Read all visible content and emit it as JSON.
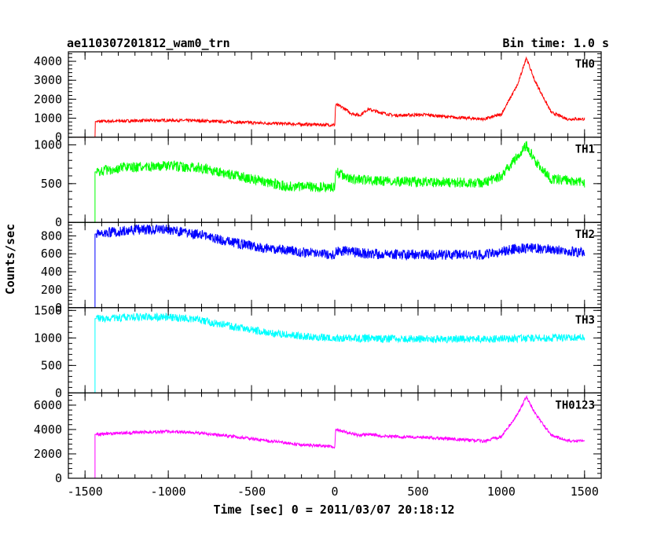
{
  "chart_data": {
    "type": "line",
    "title": "ae110307201812_wam0_trn",
    "bin_time": "Bin time: 1.0 s",
    "xlabel": "Time [sec] 0 = 2011/03/07 20:18:12",
    "ylabel": "Counts/sec",
    "xlim": [
      -1600,
      1600
    ],
    "xticks": [
      "-1500",
      "-1000",
      "-500",
      "0",
      "500",
      "1000",
      "1500"
    ],
    "xtick_values": [
      -1500,
      -1000,
      -500,
      0,
      500,
      1000,
      1500
    ],
    "panels": [
      {
        "name": "TH0",
        "color": "#ff0000",
        "ylim": [
          0,
          4500
        ],
        "yticks": [
          0,
          1000,
          2000,
          3000,
          4000
        ],
        "ytick_labels": [
          "0",
          "1000",
          "2000",
          "3000",
          "4000"
        ],
        "points": [
          [
            -1550,
            0
          ],
          [
            -1440,
            0
          ],
          [
            -1440,
            820
          ],
          [
            -1300,
            850
          ],
          [
            -1000,
            890
          ],
          [
            -800,
            860
          ],
          [
            -500,
            760
          ],
          [
            -200,
            680
          ],
          [
            -10,
            640
          ],
          [
            0,
            640
          ],
          [
            5,
            1720
          ],
          [
            50,
            1550
          ],
          [
            100,
            1250
          ],
          [
            150,
            1150
          ],
          [
            200,
            1480
          ],
          [
            250,
            1350
          ],
          [
            350,
            1150
          ],
          [
            550,
            1180
          ],
          [
            700,
            1050
          ],
          [
            900,
            950
          ],
          [
            1000,
            1200
          ],
          [
            1100,
            2800
          ],
          [
            1150,
            4200
          ],
          [
            1200,
            3000
          ],
          [
            1300,
            1300
          ],
          [
            1400,
            950
          ],
          [
            1500,
            960
          ]
        ]
      },
      {
        "name": "TH1",
        "color": "#00ff00",
        "ylim": [
          0,
          1100
        ],
        "yticks": [
          0,
          500,
          1000
        ],
        "ytick_labels": [
          "0",
          "500",
          "1000"
        ],
        "points": [
          [
            -1550,
            0
          ],
          [
            -1445,
            0
          ],
          [
            -1440,
            650
          ],
          [
            -1300,
            700
          ],
          [
            -1000,
            730
          ],
          [
            -800,
            700
          ],
          [
            -500,
            560
          ],
          [
            -300,
            470
          ],
          [
            -10,
            450
          ],
          [
            0,
            450
          ],
          [
            5,
            650
          ],
          [
            100,
            560
          ],
          [
            300,
            530
          ],
          [
            600,
            520
          ],
          [
            900,
            510
          ],
          [
            1000,
            600
          ],
          [
            1100,
            850
          ],
          [
            1150,
            1000
          ],
          [
            1200,
            800
          ],
          [
            1300,
            560
          ],
          [
            1500,
            510
          ]
        ]
      },
      {
        "name": "TH2",
        "color": "#0000ff",
        "ylim": [
          0,
          950
        ],
        "yticks": [
          0,
          200,
          400,
          600,
          800
        ],
        "ytick_labels": [
          "0",
          "200",
          "400",
          "600",
          "800"
        ],
        "points": [
          [
            -1550,
            0
          ],
          [
            -1445,
            0
          ],
          [
            -1440,
            820
          ],
          [
            -1200,
            870
          ],
          [
            -1000,
            870
          ],
          [
            -800,
            810
          ],
          [
            -600,
            720
          ],
          [
            -400,
            660
          ],
          [
            -200,
            620
          ],
          [
            -10,
            590
          ],
          [
            0,
            590
          ],
          [
            10,
            640
          ],
          [
            200,
            600
          ],
          [
            500,
            590
          ],
          [
            900,
            590
          ],
          [
            1100,
            660
          ],
          [
            1200,
            660
          ],
          [
            1500,
            610
          ]
        ]
      },
      {
        "name": "TH3",
        "color": "#00ffff",
        "ylim": [
          0,
          1550
        ],
        "yticks": [
          0,
          500,
          1000,
          1500
        ],
        "ytick_labels": [
          "0",
          "500",
          "1000",
          "1500"
        ],
        "points": [
          [
            -1550,
            0
          ],
          [
            -1445,
            0
          ],
          [
            -1440,
            1350
          ],
          [
            -1200,
            1380
          ],
          [
            -1000,
            1380
          ],
          [
            -800,
            1320
          ],
          [
            -600,
            1200
          ],
          [
            -400,
            1090
          ],
          [
            -200,
            1030
          ],
          [
            0,
            1000
          ],
          [
            200,
            990
          ],
          [
            500,
            980
          ],
          [
            900,
            980
          ],
          [
            1200,
            990
          ],
          [
            1500,
            1020
          ]
        ]
      },
      {
        "name": "TH0123",
        "color": "#ff00ff",
        "ylim": [
          0,
          7000
        ],
        "yticks": [
          0,
          2000,
          4000,
          6000
        ],
        "ytick_labels": [
          "0",
          "2000",
          "4000",
          "6000"
        ],
        "points": [
          [
            -1550,
            0
          ],
          [
            -1445,
            0
          ],
          [
            -1440,
            3600
          ],
          [
            -1300,
            3700
          ],
          [
            -1000,
            3850
          ],
          [
            -800,
            3700
          ],
          [
            -500,
            3250
          ],
          [
            -200,
            2750
          ],
          [
            -10,
            2600
          ],
          [
            0,
            2600
          ],
          [
            5,
            4000
          ],
          [
            100,
            3700
          ],
          [
            150,
            3500
          ],
          [
            200,
            3650
          ],
          [
            300,
            3450
          ],
          [
            550,
            3350
          ],
          [
            900,
            3050
          ],
          [
            1000,
            3400
          ],
          [
            1100,
            5300
          ],
          [
            1150,
            6700
          ],
          [
            1200,
            5400
          ],
          [
            1300,
            3500
          ],
          [
            1400,
            3100
          ],
          [
            1500,
            3050
          ]
        ]
      }
    ]
  }
}
